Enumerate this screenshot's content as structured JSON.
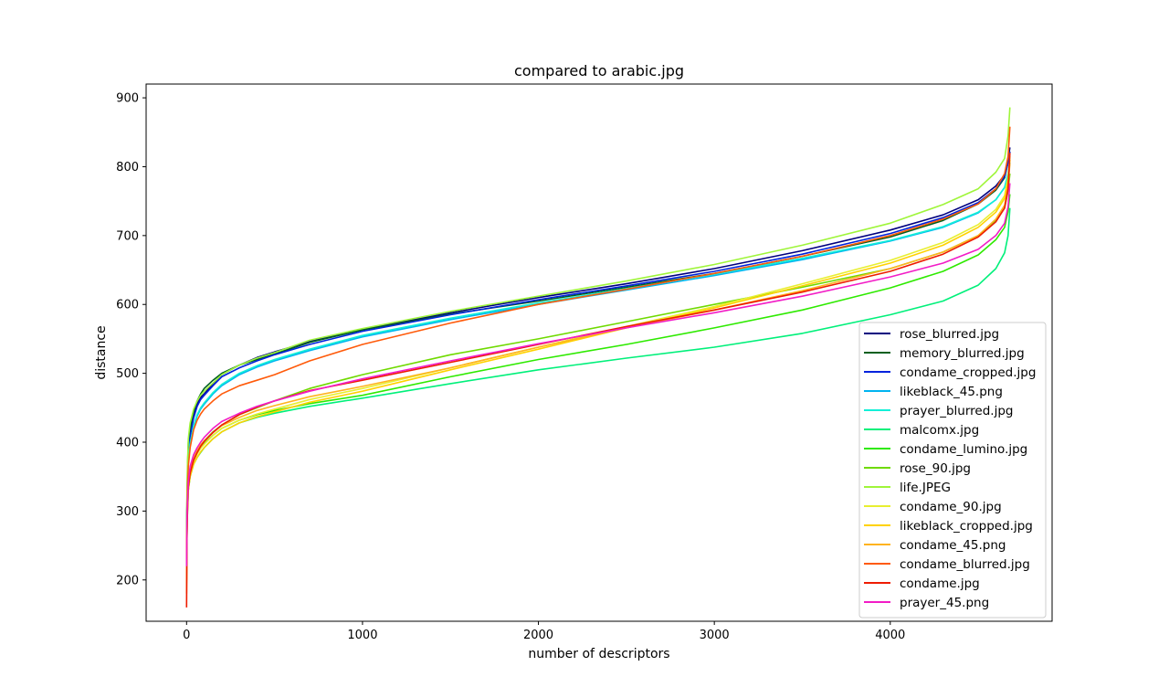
{
  "chart_data": {
    "type": "line",
    "title": "compared to arabic.jpg",
    "xlabel": "number of descriptors",
    "ylabel": "distance",
    "xlim": [
      -230,
      4920
    ],
    "ylim": [
      140,
      920
    ],
    "xticks": [
      0,
      1000,
      2000,
      3000,
      4000
    ],
    "xtick_labels": [
      "0",
      "1000",
      "2000",
      "3000",
      "4000"
    ],
    "yticks": [
      200,
      300,
      400,
      500,
      600,
      700,
      800,
      900
    ],
    "ytick_labels": [
      "200",
      "300",
      "400",
      "500",
      "600",
      "700",
      "800",
      "900"
    ],
    "grid": false,
    "legend_position": "lower-right",
    "x": [
      0,
      2,
      5,
      10,
      20,
      40,
      60,
      80,
      100,
      150,
      200,
      300,
      400,
      500,
      700,
      1000,
      1500,
      2000,
      2500,
      3000,
      3500,
      4000,
      4300,
      4500,
      4600,
      4650,
      4670,
      4680
    ],
    "series": [
      {
        "name": "rose_blurred.jpg",
        "color": "#00007f",
        "values": [
          230,
          300,
          345,
          385,
          412,
          440,
          455,
          465,
          470,
          485,
          498,
          512,
          523,
          531,
          546,
          564,
          588,
          610,
          630,
          652,
          678,
          708,
          730,
          752,
          772,
          788,
          810,
          828
        ]
      },
      {
        "name": "memory_blurred.jpg",
        "color": "#005f1f",
        "values": [
          240,
          310,
          360,
          400,
          420,
          445,
          460,
          470,
          478,
          490,
          500,
          512,
          520,
          528,
          545,
          563,
          586,
          605,
          625,
          645,
          670,
          698,
          722,
          746,
          766,
          784,
          806,
          822
        ]
      },
      {
        "name": "condame_cropped.jpg",
        "color": "#0022dd",
        "values": [
          230,
          300,
          345,
          382,
          408,
          435,
          452,
          462,
          468,
          482,
          495,
          508,
          518,
          527,
          542,
          561,
          585,
          607,
          627,
          648,
          673,
          703,
          726,
          748,
          768,
          786,
          806,
          822
        ]
      },
      {
        "name": "likeblack_45.png",
        "color": "#00b4f0",
        "values": [
          225,
          290,
          335,
          372,
          398,
          422,
          438,
          448,
          455,
          470,
          482,
          498,
          509,
          518,
          533,
          553,
          578,
          600,
          621,
          642,
          665,
          692,
          712,
          733,
          752,
          770,
          790,
          806
        ]
      },
      {
        "name": "prayer_blurred.jpg",
        "color": "#13f0d8",
        "values": [
          225,
          290,
          335,
          372,
          398,
          424,
          440,
          450,
          457,
          472,
          484,
          500,
          511,
          520,
          535,
          555,
          580,
          602,
          623,
          644,
          667,
          693,
          713,
          734,
          752,
          770,
          790,
          804
        ]
      },
      {
        "name": "malcomx.jpg",
        "color": "#00f07a",
        "values": [
          200,
          265,
          300,
          330,
          350,
          368,
          378,
          385,
          392,
          405,
          415,
          428,
          436,
          442,
          452,
          464,
          485,
          505,
          522,
          538,
          558,
          585,
          605,
          628,
          652,
          675,
          700,
          740
        ]
      },
      {
        "name": "condame_lumino.jpg",
        "color": "#2eea00",
        "values": [
          210,
          275,
          310,
          340,
          358,
          375,
          385,
          392,
          398,
          410,
          420,
          432,
          440,
          446,
          456,
          468,
          495,
          520,
          542,
          566,
          592,
          624,
          648,
          672,
          694,
          712,
          735,
          760
        ]
      },
      {
        "name": "rose_90.jpg",
        "color": "#6fda00",
        "values": [
          210,
          275,
          312,
          342,
          360,
          378,
          388,
          396,
          402,
          415,
          425,
          440,
          450,
          460,
          478,
          498,
          527,
          550,
          575,
          600,
          625,
          652,
          676,
          700,
          722,
          740,
          765,
          790
        ]
      },
      {
        "name": "life.JPEG",
        "color": "#9ff53a",
        "values": [
          240,
          320,
          368,
          405,
          428,
          448,
          460,
          468,
          474,
          486,
          498,
          512,
          522,
          530,
          548,
          565,
          590,
          612,
          634,
          658,
          686,
          718,
          745,
          768,
          792,
          812,
          845,
          886
        ]
      },
      {
        "name": "condame_90.jpg",
        "color": "#e8ef30",
        "values": [
          200,
          265,
          305,
          335,
          355,
          373,
          383,
          391,
          397,
          410,
          420,
          432,
          441,
          448,
          462,
          478,
          508,
          538,
          568,
          597,
          630,
          664,
          690,
          716,
          738,
          758,
          785,
          815
        ]
      },
      {
        "name": "likeblack_cropped.jpg",
        "color": "#ffd200",
        "values": [
          195,
          260,
          300,
          330,
          350,
          368,
          378,
          386,
          392,
          405,
          415,
          428,
          437,
          444,
          458,
          474,
          505,
          535,
          566,
          595,
          627,
          660,
          686,
          712,
          734,
          754,
          780,
          810
        ]
      },
      {
        "name": "condame_45.png",
        "color": "#ffb31f",
        "values": [
          180,
          270,
          310,
          340,
          360,
          378,
          388,
          396,
          402,
          414,
          424,
          436,
          446,
          453,
          466,
          481,
          508,
          538,
          566,
          592,
          620,
          652,
          676,
          700,
          724,
          744,
          772,
          805
        ]
      },
      {
        "name": "condame_blurred.jpg",
        "color": "#ff5a0a",
        "values": [
          220,
          290,
          330,
          365,
          392,
          418,
          432,
          441,
          448,
          460,
          470,
          482,
          490,
          498,
          518,
          542,
          573,
          600,
          622,
          645,
          670,
          700,
          724,
          746,
          768,
          790,
          815,
          858
        ]
      },
      {
        "name": "condame.jpg",
        "color": "#ee1c00",
        "values": [
          160,
          260,
          300,
          335,
          355,
          374,
          385,
          394,
          401,
          414,
          425,
          440,
          451,
          460,
          475,
          490,
          516,
          542,
          568,
          592,
          618,
          648,
          673,
          698,
          720,
          740,
          768,
          820
        ]
      },
      {
        "name": "prayer_45.png",
        "color": "#f21cc6",
        "values": [
          220,
          285,
          315,
          342,
          365,
          382,
          392,
          400,
          407,
          420,
          430,
          442,
          452,
          460,
          474,
          492,
          518,
          543,
          566,
          588,
          612,
          640,
          660,
          680,
          700,
          718,
          742,
          776
        ]
      }
    ]
  }
}
